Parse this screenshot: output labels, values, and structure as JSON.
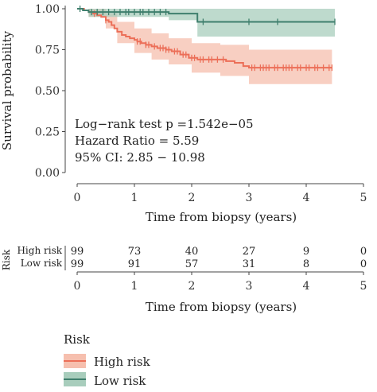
{
  "chart_data": {
    "type": "line",
    "subtype": "kaplan-meier",
    "ylabel": "Survival probability",
    "xlabel": "Time from biopsy (years)",
    "xlim": [
      0,
      5
    ],
    "ylim": [
      0,
      1
    ],
    "xticks": [
      "0",
      "1",
      "2",
      "3",
      "4",
      "5"
    ],
    "yticks": [
      "0.00",
      "0.25",
      "0.50",
      "0.75",
      "1.00"
    ],
    "grid": false,
    "series": [
      {
        "name": "High risk",
        "color": "#ec6f58",
        "ci_color": "#f6bfae",
        "steps": [
          [
            0,
            1.0
          ],
          [
            0.08,
            1.0
          ],
          [
            0.12,
            0.99
          ],
          [
            0.2,
            0.98
          ],
          [
            0.28,
            0.97
          ],
          [
            0.35,
            0.96
          ],
          [
            0.42,
            0.95
          ],
          [
            0.5,
            0.93
          ],
          [
            0.55,
            0.92
          ],
          [
            0.6,
            0.9
          ],
          [
            0.65,
            0.88
          ],
          [
            0.7,
            0.86
          ],
          [
            0.78,
            0.84
          ],
          [
            0.85,
            0.83
          ],
          [
            0.92,
            0.82
          ],
          [
            1.0,
            0.81
          ],
          [
            1.05,
            0.8
          ],
          [
            1.12,
            0.79
          ],
          [
            1.2,
            0.78
          ],
          [
            1.3,
            0.77
          ],
          [
            1.4,
            0.76
          ],
          [
            1.55,
            0.75
          ],
          [
            1.65,
            0.74
          ],
          [
            1.8,
            0.72
          ],
          [
            1.95,
            0.7
          ],
          [
            2.1,
            0.69
          ],
          [
            2.5,
            0.69
          ],
          [
            2.6,
            0.68
          ],
          [
            2.75,
            0.67
          ],
          [
            2.9,
            0.65
          ],
          [
            3.0,
            0.64
          ],
          [
            4.45,
            0.64
          ]
        ],
        "ci_upper": [
          [
            0,
            1.0
          ],
          [
            0.2,
            1.0
          ],
          [
            0.5,
            0.97
          ],
          [
            0.7,
            0.92
          ],
          [
            1.0,
            0.88
          ],
          [
            1.3,
            0.85
          ],
          [
            1.6,
            0.82
          ],
          [
            2.0,
            0.79
          ],
          [
            2.5,
            0.78
          ],
          [
            3.0,
            0.75
          ],
          [
            4.45,
            0.75
          ]
        ],
        "ci_lower": [
          [
            0,
            1.0
          ],
          [
            0.2,
            0.95
          ],
          [
            0.5,
            0.88
          ],
          [
            0.7,
            0.79
          ],
          [
            1.0,
            0.73
          ],
          [
            1.3,
            0.69
          ],
          [
            1.6,
            0.66
          ],
          [
            2.0,
            0.61
          ],
          [
            2.5,
            0.59
          ],
          [
            3.0,
            0.54
          ],
          [
            4.45,
            0.53
          ]
        ],
        "censor_times": [
          0.3,
          0.5,
          1.05,
          1.1,
          1.2,
          1.25,
          1.35,
          1.45,
          1.5,
          1.55,
          1.6,
          1.7,
          1.75,
          1.85,
          1.9,
          2.0,
          2.05,
          2.15,
          2.2,
          2.3,
          2.35,
          2.45,
          2.55,
          3.05,
          3.1,
          3.2,
          3.25,
          3.3,
          3.35,
          3.45,
          3.5,
          3.6,
          3.65,
          3.7,
          3.75,
          3.85,
          3.9,
          4.0,
          4.05,
          4.15,
          4.2,
          4.3,
          4.4,
          4.45
        ]
      },
      {
        "name": "Low risk",
        "color": "#3f7f6d",
        "ci_color": "#a8cdbc",
        "steps": [
          [
            0,
            1.0
          ],
          [
            0.1,
            0.99
          ],
          [
            0.2,
            0.98
          ],
          [
            1.6,
            0.97
          ],
          [
            2.1,
            0.92
          ],
          [
            4.5,
            0.92
          ]
        ],
        "ci_upper": [
          [
            0,
            1.0
          ],
          [
            4.5,
            1.0
          ]
        ],
        "ci_lower": [
          [
            0,
            1.0
          ],
          [
            0.2,
            0.95
          ],
          [
            1.6,
            0.93
          ],
          [
            2.1,
            0.83
          ],
          [
            4.5,
            0.83
          ]
        ],
        "censor_times": [
          0.05,
          0.25,
          0.35,
          0.45,
          0.55,
          0.65,
          0.75,
          0.85,
          0.9,
          1.0,
          1.1,
          1.15,
          1.25,
          1.35,
          1.45,
          1.55,
          2.2,
          3.0,
          3.5,
          4.5
        ]
      }
    ],
    "annotations": [
      "Log−rank test p =1.542e−05",
      "Hazard Ratio = 5.59",
      "95% CI: 2.85 − 10.98"
    ],
    "risk_table": {
      "title": "Risk",
      "time_points": [
        0,
        1,
        2,
        3,
        4,
        5
      ],
      "xlabel": "Time from biopsy (years)",
      "rows": [
        {
          "label": "High risk",
          "values": [
            "99",
            "73",
            "40",
            "27",
            "9",
            "0"
          ]
        },
        {
          "label": "Low risk",
          "values": [
            "99",
            "91",
            "57",
            "31",
            "8",
            "0"
          ]
        }
      ]
    },
    "legend": {
      "title": "Risk",
      "position": "bottom-left",
      "entries": [
        "High risk",
        "Low risk"
      ]
    }
  }
}
